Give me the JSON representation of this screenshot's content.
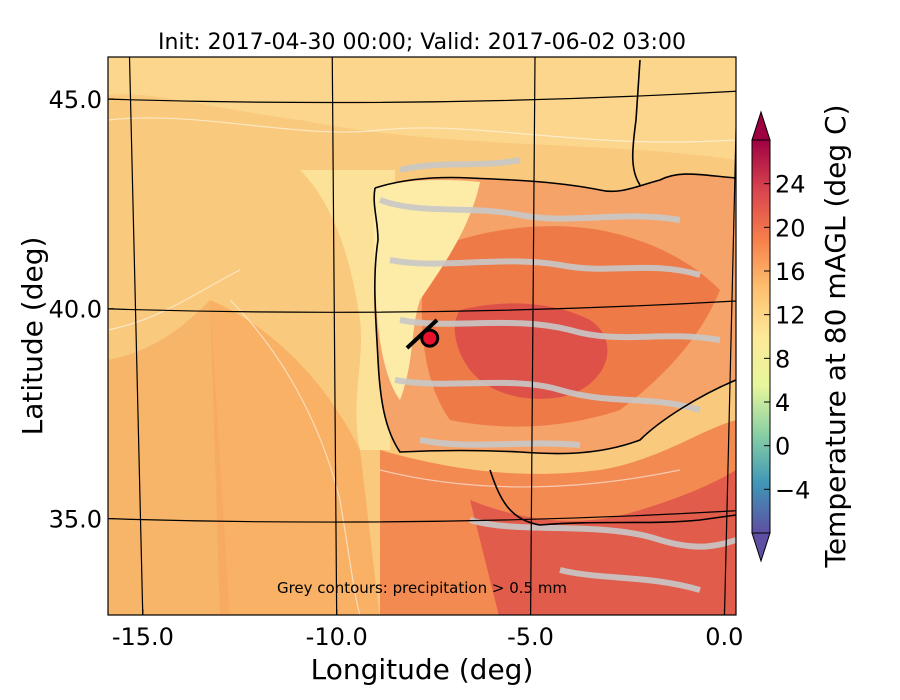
{
  "title": "Init: 2017-04-30 00:00; Valid: 2017-06-02 03:00",
  "x_axis": {
    "label": "Longitude (deg)",
    "ticks": [
      {
        "value": -15.0,
        "label": "-15.0"
      },
      {
        "value": -10.0,
        "label": "-10.0"
      },
      {
        "value": -5.0,
        "label": "-5.0"
      },
      {
        "value": 0.0,
        "label": "0.0"
      }
    ],
    "range": [
      -15.9,
      0.3
    ]
  },
  "y_axis": {
    "label": "Latitude (deg)",
    "ticks": [
      {
        "value": 35.0,
        "label": "35.0"
      },
      {
        "value": 40.0,
        "label": "40.0"
      },
      {
        "value": 45.0,
        "label": "45.0"
      }
    ],
    "range": [
      32.7,
      46.0
    ]
  },
  "annotation": "Grey contours: precipitation > 0.5 mm",
  "colorbar": {
    "label": "Temperature at 80 mAGL (deg C)",
    "min": -8,
    "max": 28,
    "extend": "both",
    "ticks": [
      {
        "value": -4,
        "label": "−4"
      },
      {
        "value": 0,
        "label": "0"
      },
      {
        "value": 4,
        "label": "4"
      },
      {
        "value": 8,
        "label": "8"
      },
      {
        "value": 12,
        "label": "12"
      },
      {
        "value": 16,
        "label": "16"
      },
      {
        "value": 20,
        "label": "20"
      },
      {
        "value": 24,
        "label": "24"
      }
    ],
    "colors": [
      "#5e4fa2",
      "#3f96b7",
      "#88cfa4",
      "#e7f69b",
      "#fee999",
      "#fdbf6f",
      "#f67e4b",
      "#d8434e",
      "#9e0142"
    ]
  },
  "marker": {
    "lon": -7.6,
    "lat": 39.3,
    "color": "#e8102a"
  },
  "colors": {
    "ocean": "#f9c97d",
    "ocean_warm": "#f7a85e",
    "land_cool": "#fdf0a6",
    "land_warm": "#ee7a48",
    "land_hot": "#d94a4a",
    "precip": "#c8c8c8"
  }
}
